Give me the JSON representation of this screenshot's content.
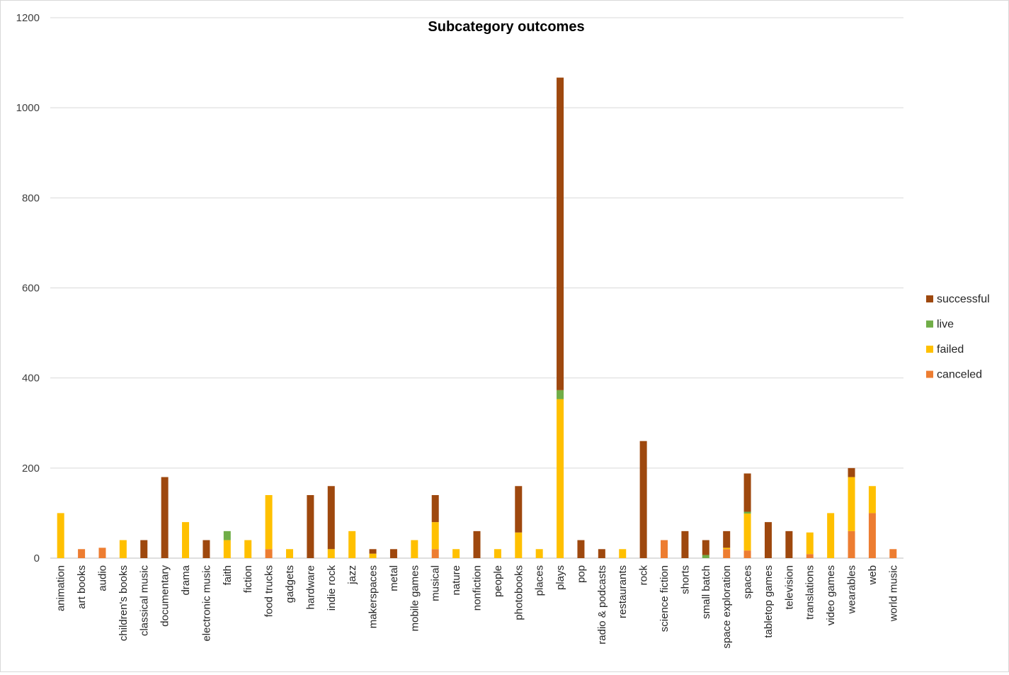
{
  "chart_data": {
    "type": "bar",
    "stacked": true,
    "title": "Subcategory outcomes",
    "xlabel": "",
    "ylabel": "",
    "ylim": [
      0,
      1200
    ],
    "yticks": [
      0,
      200,
      400,
      600,
      800,
      1000,
      1200
    ],
    "grid": true,
    "legend_position": "right",
    "categories": [
      "animation",
      "art books",
      "audio",
      "children's books",
      "classical music",
      "documentary",
      "drama",
      "electronic music",
      "faith",
      "fiction",
      "food trucks",
      "gadgets",
      "hardware",
      "indie rock",
      "jazz",
      "makerspaces",
      "metal",
      "mobile games",
      "musical",
      "nature",
      "nonfiction",
      "people",
      "photobooks",
      "places",
      "plays",
      "pop",
      "radio & podcasts",
      "restaurants",
      "rock",
      "science fiction",
      "shorts",
      "small batch",
      "space exploration",
      "spaces",
      "tabletop games",
      "television",
      "translations",
      "video games",
      "wearables",
      "web",
      "world music"
    ],
    "series": [
      {
        "name": "canceled",
        "color": "#ED7D31",
        "values": [
          0,
          20,
          23,
          0,
          0,
          0,
          0,
          0,
          0,
          0,
          20,
          0,
          0,
          0,
          0,
          0,
          0,
          0,
          20,
          0,
          0,
          0,
          0,
          0,
          0,
          0,
          0,
          0,
          0,
          40,
          0,
          0,
          20,
          17,
          0,
          0,
          9,
          0,
          60,
          100,
          20
        ]
      },
      {
        "name": "failed",
        "color": "#FFC000",
        "values": [
          100,
          0,
          0,
          40,
          0,
          0,
          80,
          0,
          40,
          40,
          120,
          20,
          0,
          20,
          60,
          10,
          0,
          40,
          60,
          20,
          0,
          20,
          57,
          20,
          353,
          0,
          0,
          20,
          0,
          0,
          0,
          0,
          3,
          82,
          0,
          0,
          48,
          100,
          120,
          60,
          0
        ]
      },
      {
        "name": "live",
        "color": "#70AD47",
        "values": [
          0,
          0,
          0,
          0,
          0,
          0,
          0,
          0,
          20,
          0,
          0,
          0,
          0,
          0,
          0,
          0,
          0,
          0,
          0,
          0,
          0,
          0,
          0,
          0,
          20,
          0,
          0,
          0,
          0,
          0,
          0,
          7,
          0,
          4,
          0,
          0,
          0,
          0,
          0,
          0,
          0
        ]
      },
      {
        "name": "successful",
        "color": "#9E480E",
        "values": [
          0,
          0,
          0,
          0,
          40,
          180,
          0,
          40,
          0,
          0,
          0,
          0,
          140,
          140,
          0,
          10,
          20,
          0,
          60,
          0,
          60,
          0,
          103,
          0,
          694,
          40,
          20,
          0,
          260,
          0,
          60,
          33,
          37,
          85,
          80,
          60,
          0,
          0,
          20,
          0,
          0
        ]
      }
    ]
  }
}
